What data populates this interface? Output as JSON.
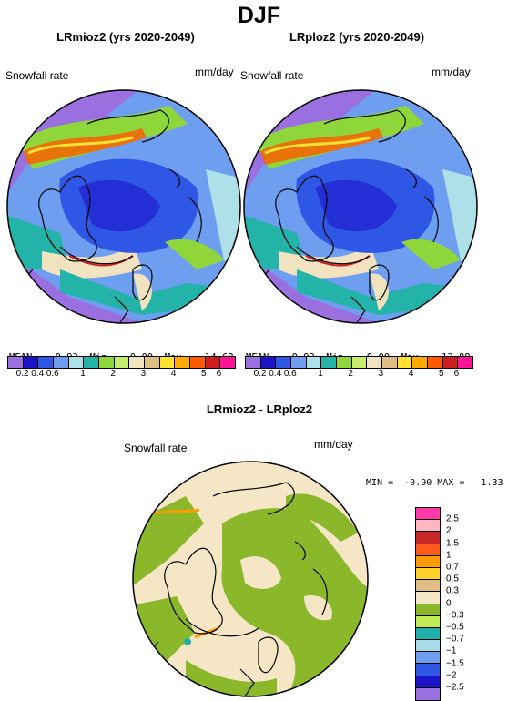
{
  "title": "DJF",
  "panels": [
    {
      "subtitle": "LRmioz2 (yrs 2020-2049)",
      "variable": "Snowfall rate",
      "units": "mm/day",
      "stats": {
        "mean_label": "MEAN=",
        "mean": "0.93",
        "min_label": "Min=",
        "min": "0.00",
        "max_label": "Max=",
        "max": "14.68"
      }
    },
    {
      "subtitle": "LRploz2 (yrs 2020-2049)",
      "variable": "Snowfall rate",
      "units": "mm/day",
      "stats": {
        "mean_label": "MEAN=",
        "mean": "0.93",
        "min_label": "Min=",
        "min": "0.00",
        "max_label": "Max=",
        "max": "13.88"
      }
    }
  ],
  "abs_colorbar": {
    "colors": [
      "#9a6fe0",
      "#1c14c8",
      "#2f57e6",
      "#6d9ef0",
      "#aee0ea",
      "#23b3a8",
      "#8fd63a",
      "#c5ee6a",
      "#f2e3c0",
      "#e0bd82",
      "#ffe033",
      "#ffaa00",
      "#ff5a00",
      "#cf1e1e",
      "#ff1493"
    ],
    "ticks": [
      "0.2",
      "0.6",
      "1",
      "2",
      "3",
      "4",
      "5",
      "6"
    ],
    "first_tick_2": "0.4"
  },
  "diff": {
    "subtitle": "LRmioz2 - LRploz2",
    "variable": "Snowfall rate",
    "units": "mm/day",
    "stats_text": "MIN =  -0.90 MAX =   1.33",
    "colorbar_colors": [
      "#ff39a8",
      "#ffb6c1",
      "#c82828",
      "#ff5a1e",
      "#ff9d00",
      "#ffd12a",
      "#e0bd82",
      "#f5e6c6",
      "#8ab82a",
      "#c0ec55",
      "#20b0a8",
      "#a8dce8",
      "#6d9ef0",
      "#2f57e6",
      "#1c14c8",
      "#9a6fe0"
    ],
    "colorbar_ticks": [
      "2.5",
      "2",
      "1.5",
      "1",
      "0.7",
      "0.5",
      "0.3",
      "0",
      "−0.3",
      "−0.5",
      "−0.7",
      "−1",
      "−1.5",
      "−2",
      "−2.5"
    ]
  }
}
